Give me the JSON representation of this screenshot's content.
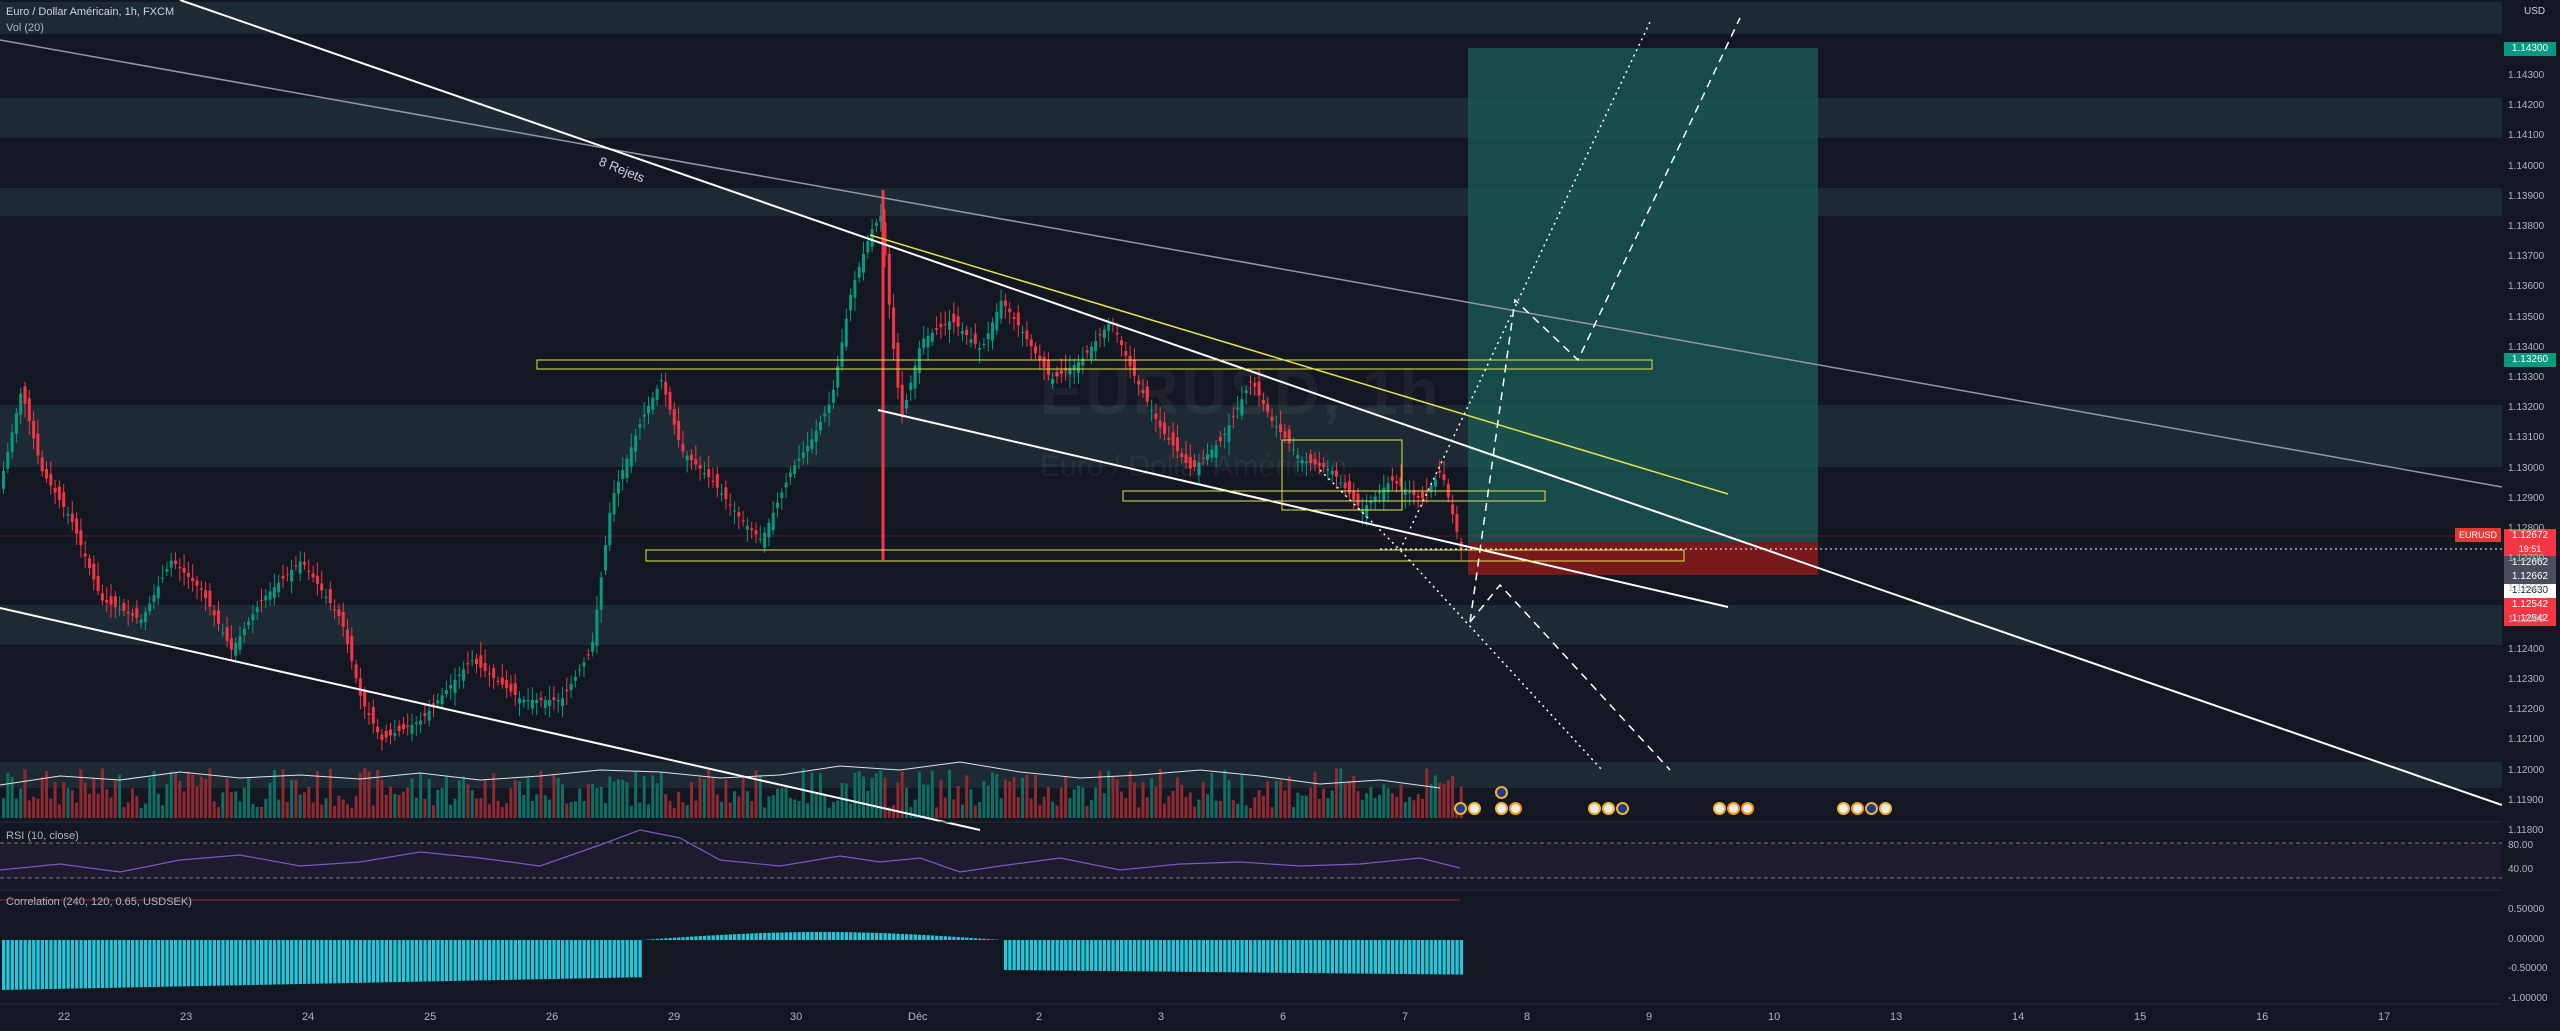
{
  "header": {
    "title": "Euro / Dollar Américain, 1h, FXCM",
    "volume_label": "Vol (20)"
  },
  "indicators": {
    "rsi_label": "RSI (10, close)",
    "correlation_label": "Correlation (240, 120, 0.65, USDSEK)",
    "rsi_levels": [
      "80.00",
      "40.00"
    ],
    "correlation_levels": [
      "0.50000",
      "0.00000",
      "-0.50000",
      "-1.00000"
    ]
  },
  "watermark": {
    "symbol": "EURUSD, 1h",
    "name": "Euro / Dollar Américain"
  },
  "annotation": {
    "text": "8 Rejets"
  },
  "price_axis": {
    "currency": "USD",
    "ticks": [
      "1.14300",
      "1.14200",
      "1.14100",
      "1.14000",
      "1.13900",
      "1.13800",
      "1.13700",
      "1.13600",
      "1.13500",
      "1.13400",
      "1.13300",
      "1.13200",
      "1.13100",
      "1.13000",
      "1.12900",
      "1.12800",
      "1.12700",
      "1.12600",
      "1.12500",
      "1.12400",
      "1.12300",
      "1.12200",
      "1.12100",
      "1.12000",
      "1.11900",
      "1.11800"
    ],
    "badges": {
      "target": "1.14300",
      "entry_line": "1.13260",
      "symbol": "EURUSD",
      "last_price": "1.12672",
      "countdown": "19:51",
      "gray1": "1.12662",
      "gray2": "1.12662",
      "white": "1.12630",
      "red1": "1.12542",
      "red2": "1.12542"
    },
    "colors": {
      "green": "#089981",
      "red": "#f23645",
      "gray": "#4a4e5a"
    }
  },
  "time_axis": {
    "labels": [
      "22",
      "23",
      "24",
      "25",
      "26",
      "29",
      "30",
      "Déc",
      "2",
      "3",
      "6",
      "7",
      "8",
      "9",
      "10",
      "13",
      "14",
      "15",
      "16",
      "17"
    ]
  },
  "chart_data": {
    "type": "candlestick",
    "symbol": "EURUSD",
    "timeframe": "1h",
    "ylim": [
      1.1175,
      1.1445
    ],
    "last_price": 1.12672,
    "position": {
      "type": "long",
      "entry": 1.1268,
      "target": 1.143,
      "stop": 1.1258
    },
    "horizontal_zones": [
      1.1437,
      1.1405,
      1.1381,
      1.1295,
      1.1238,
      1.1189
    ],
    "yellow_boxes": [
      {
        "label": "",
        "top": 1.1327,
        "bottom": 1.1324
      },
      {
        "label": "",
        "top": 1.1287,
        "bottom": 1.1284
      },
      {
        "label": "",
        "top": 1.1265,
        "bottom": 1.1262
      }
    ]
  }
}
